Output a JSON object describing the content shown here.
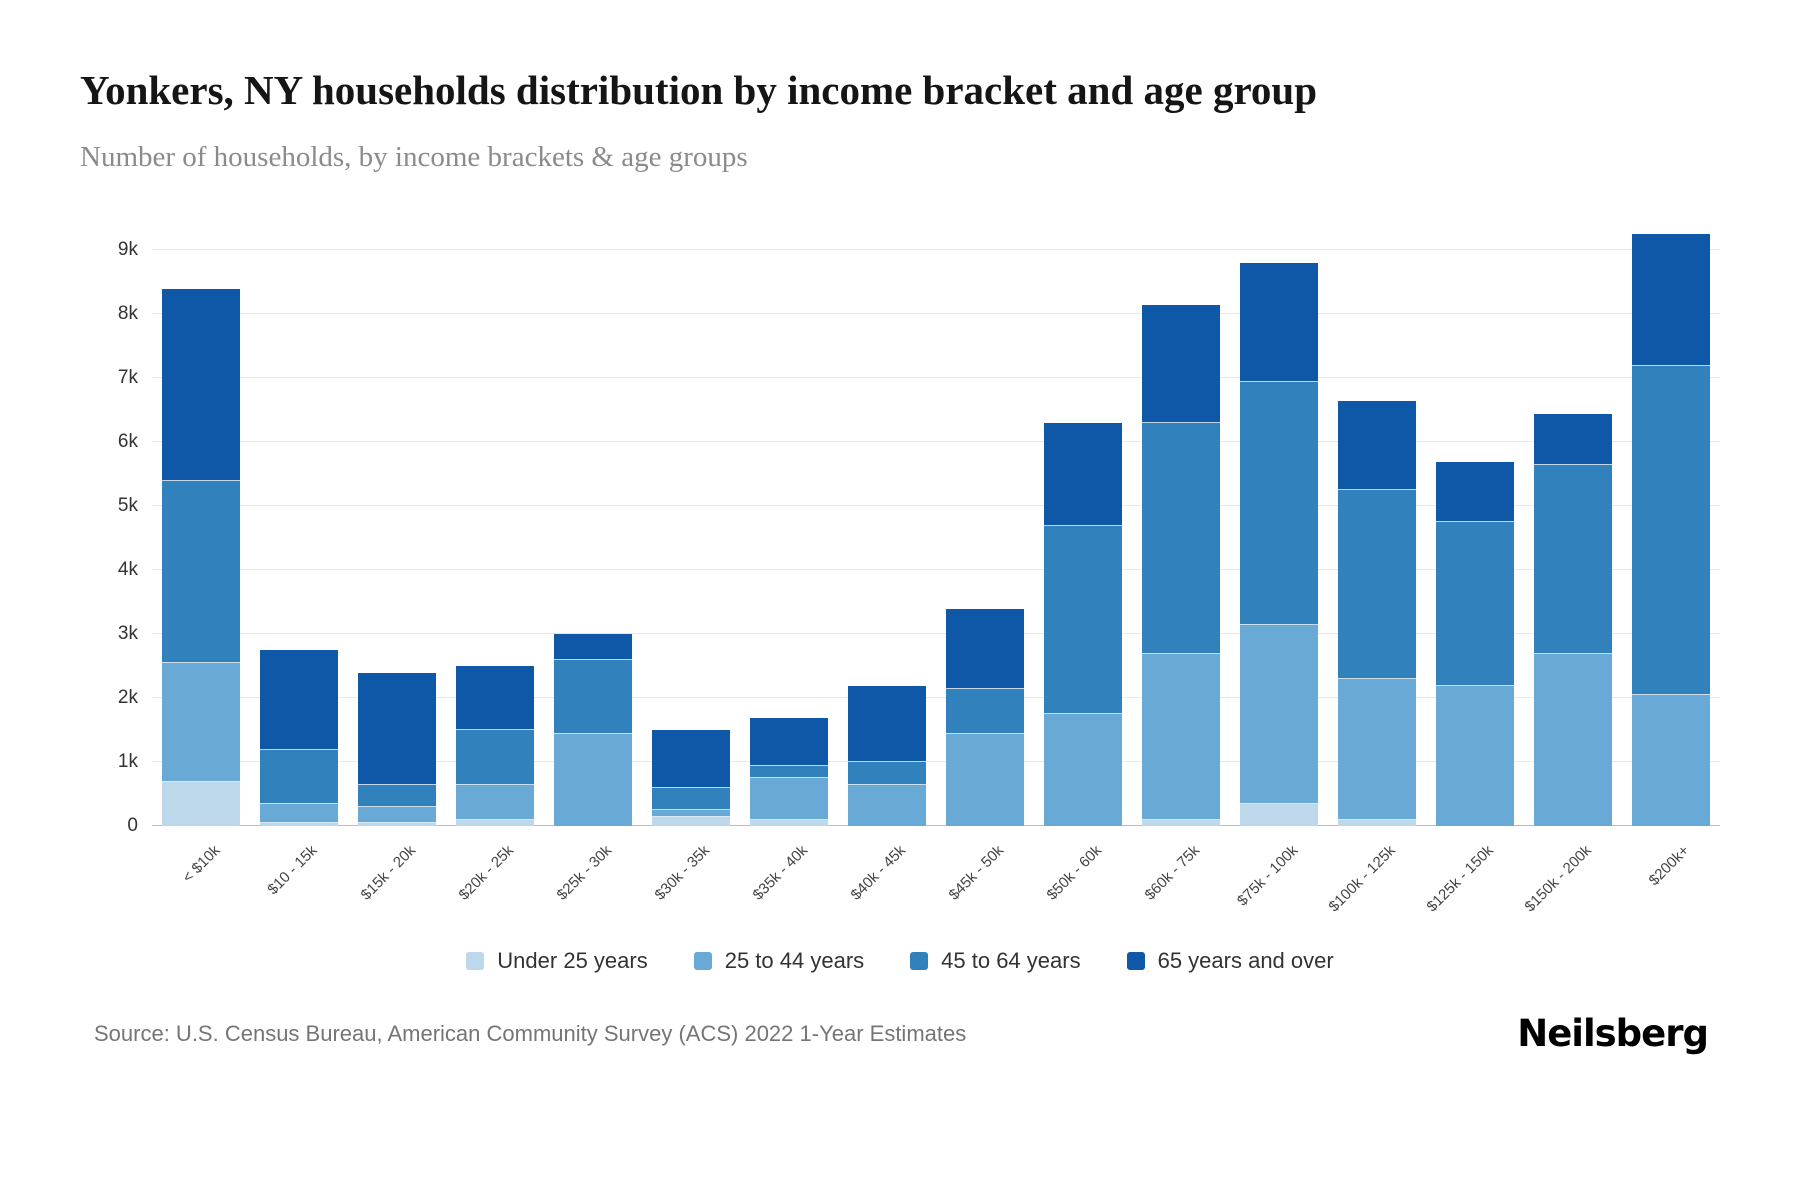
{
  "header": {
    "title": "Yonkers, NY households distribution by income bracket and age group",
    "subtitle": "Number of households, by income brackets & age groups"
  },
  "footer": {
    "source": "Source: U.S. Census Bureau, American Community Survey (ACS) 2022 1-Year Estimates",
    "brand": "Neilsberg"
  },
  "chart_data": {
    "type": "bar",
    "stacked": true,
    "title": "Yonkers, NY households distribution by income bracket and age group",
    "subtitle": "Number of households, by income brackets & age groups",
    "xlabel": "",
    "ylabel": "",
    "ylim": [
      0,
      9300
    ],
    "grid": true,
    "legend_position": "bottom",
    "y_ticks": [
      "0",
      "1k",
      "2k",
      "3k",
      "4k",
      "5k",
      "6k",
      "7k",
      "8k",
      "9k"
    ],
    "categories": [
      "< $10k",
      "$10 - 15k",
      "$15k - 20k",
      "$20k - 25k",
      "$25k - 30k",
      "$30k - 35k",
      "$35k - 40k",
      "$40k - 45k",
      "$45k - 50k",
      "$50k - 60k",
      "$60k - 75k",
      "$75k - 100k",
      "$100k - 125k",
      "$125k - 150k",
      "$150k - 200k",
      "$200k+"
    ],
    "series": [
      {
        "name": "Under 25 years",
        "color": "#bed8eb",
        "values": [
          700,
          50,
          50,
          100,
          0,
          150,
          100,
          0,
          0,
          0,
          100,
          350,
          100,
          0,
          0,
          0
        ]
      },
      {
        "name": "25 to 44 years",
        "color": "#68aad5",
        "values": [
          1850,
          300,
          250,
          550,
          1450,
          100,
          650,
          650,
          1450,
          1750,
          2600,
          2800,
          2200,
          2200,
          2700,
          2050
        ]
      },
      {
        "name": "45 to 64 years",
        "color": "#3181bd",
        "values": [
          2850,
          850,
          350,
          850,
          1150,
          350,
          200,
          350,
          700,
          2950,
          3600,
          3800,
          2950,
          2550,
          2950,
          5150
        ]
      },
      {
        "name": "65 years and over",
        "color": "#0f57a7",
        "values": [
          3000,
          1550,
          1750,
          1000,
          400,
          900,
          750,
          1200,
          1250,
          1600,
          1850,
          1850,
          1400,
          950,
          800,
          2050
        ]
      }
    ]
  }
}
